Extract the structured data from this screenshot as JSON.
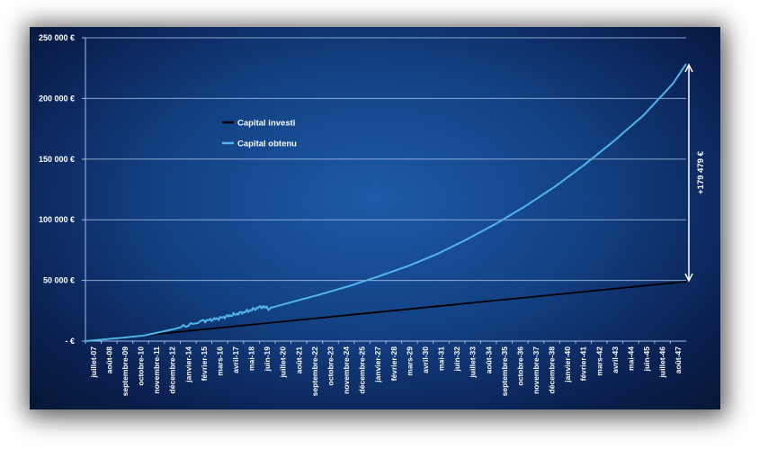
{
  "chart_data": {
    "type": "line",
    "y_ticks": [
      "250 000 €",
      "200 000 €",
      "150 000 €",
      "100 000 €",
      "50 000 €",
      "-   €"
    ],
    "ylim": [
      0,
      250000
    ],
    "x_tick_labels": [
      "juillet-07",
      "août-08",
      "septembre-09",
      "octobre-10",
      "novembre-11",
      "décembre-12",
      "janvier-14",
      "février-15",
      "mars-16",
      "avril-17",
      "mai-18",
      "juin-19",
      "juillet-20",
      "août-21",
      "septembre-22",
      "octobre-23",
      "novembre-24",
      "décembre-25",
      "janvier-27",
      "février-28",
      "mars-29",
      "avril-30",
      "mai-31",
      "juin-32",
      "juillet-33",
      "août-34",
      "septembre-35",
      "octobre-36",
      "novembre-37",
      "décembre-38",
      "janvier-40",
      "février-41",
      "mars-42",
      "avril-43",
      "mai-44",
      "juin-45",
      "juillet-46",
      "août-47"
    ],
    "x_start": "2007-07",
    "x_end": "2048-06",
    "series": [
      {
        "name": "Capital investi",
        "color": "#000000",
        "x": [
          "2007-07",
          "2048-06"
        ],
        "values": [
          0,
          49000
        ]
      },
      {
        "name": "Capital obtenu",
        "color": "#4fb6ee",
        "x": [
          "2007-07",
          "2009-07",
          "2011-07",
          "2013-07",
          "2015-07",
          "2016-07",
          "2017-07",
          "2018-07",
          "2019-07",
          "2020-01",
          "2021-07",
          "2023-07",
          "2025-07",
          "2027-07",
          "2029-07",
          "2031-07",
          "2033-07",
          "2035-07",
          "2037-07",
          "2039-07",
          "2041-07",
          "2043-07",
          "2045-07",
          "2047-07",
          "2048-06"
        ],
        "values": [
          0,
          2200,
          4600,
          9800,
          16500,
          18500,
          21500,
          24500,
          28500,
          27000,
          32000,
          38500,
          45500,
          53500,
          62000,
          72000,
          84000,
          97000,
          111500,
          127500,
          145500,
          165000,
          186000,
          212000,
          228500
        ]
      }
    ],
    "annotation": "+179 479 €",
    "legend_position": "upper-left",
    "grid": true
  }
}
